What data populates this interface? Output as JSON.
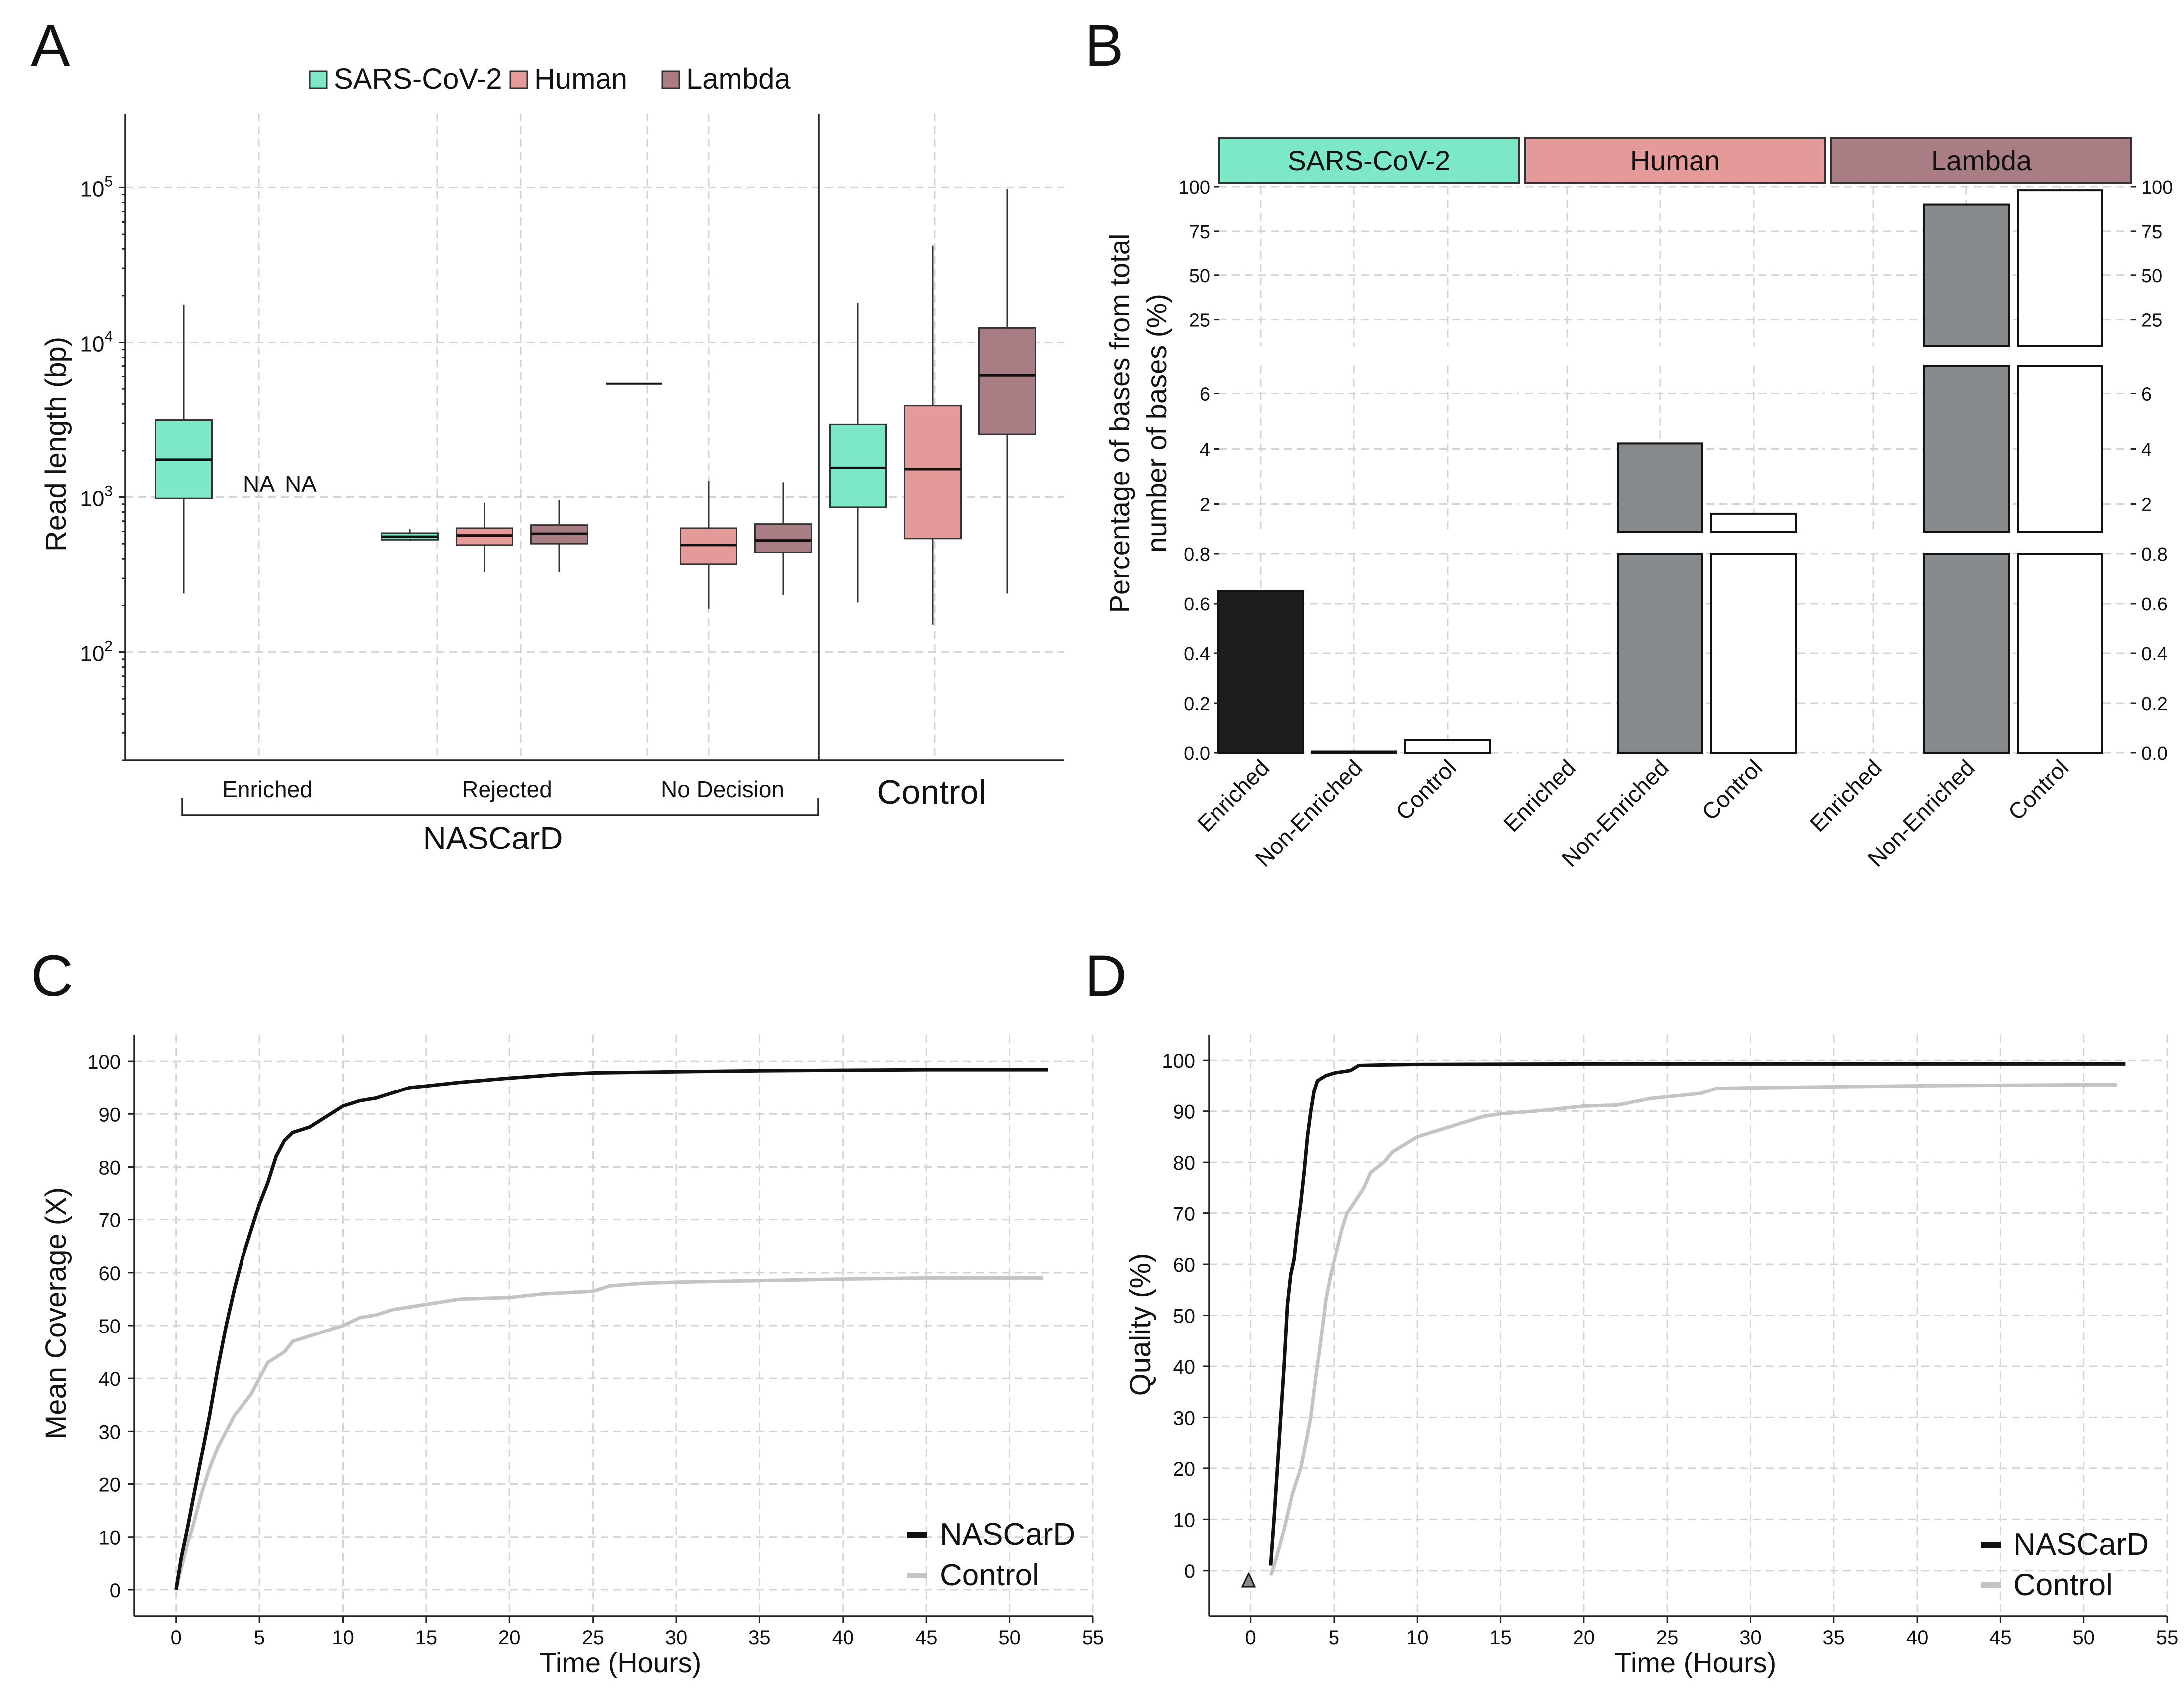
{
  "panel_labels": {
    "a": "A",
    "b": "B",
    "c": "C",
    "d": "D"
  },
  "colors": {
    "sars": "#7de8c8",
    "human": "#e39a98",
    "lambda": "#a97d84",
    "gray_bar": "#868a8c",
    "black_bar": "#1f1c1c",
    "nascard_line": "#111111",
    "control_line": "#c4c4c4"
  },
  "chart_data": [
    {
      "id": "A",
      "type": "box",
      "ylabel": "Read length (bp)",
      "yscale": "log10",
      "ylim": [
        20,
        300000
      ],
      "ytick_base": "10",
      "ytick_exponents": [
        "2",
        "3",
        "4",
        "5"
      ],
      "legend": [
        "SARS-CoV-2",
        "Human",
        "Lambda"
      ],
      "group_labels": [
        "Enriched",
        "Rejected",
        "No Decision",
        "Control"
      ],
      "bracket_label": "NASCarD",
      "na_label": "NA",
      "boxes": [
        {
          "group": "Enriched",
          "species": "SARS-CoV-2",
          "min": 240,
          "q1": 980,
          "median": 1750,
          "q3": 3150,
          "max": 17500
        },
        {
          "group": "Rejected",
          "species": "SARS-CoV-2",
          "min": 520,
          "q1": 530,
          "median": 555,
          "q3": 585,
          "max": 620
        },
        {
          "group": "Rejected",
          "species": "Human",
          "min": 330,
          "q1": 490,
          "median": 565,
          "q3": 630,
          "max": 920
        },
        {
          "group": "Rejected",
          "species": "Lambda",
          "min": 330,
          "q1": 500,
          "median": 580,
          "q3": 660,
          "max": 960
        },
        {
          "group": "No Decision",
          "species": "SARS-CoV-2",
          "min": 5400,
          "q1": 5400,
          "median": 5400,
          "q3": 5400,
          "max": 5400
        },
        {
          "group": "No Decision",
          "species": "Human",
          "min": 190,
          "q1": 370,
          "median": 490,
          "q3": 630,
          "max": 1280
        },
        {
          "group": "No Decision",
          "species": "Lambda",
          "min": 235,
          "q1": 440,
          "median": 525,
          "q3": 670,
          "max": 1250
        },
        {
          "group": "Control",
          "species": "SARS-CoV-2",
          "min": 210,
          "q1": 860,
          "median": 1550,
          "q3": 2950,
          "max": 18000
        },
        {
          "group": "Control",
          "species": "Human",
          "min": 150,
          "q1": 540,
          "median": 1520,
          "q3": 3900,
          "max": 42000
        },
        {
          "group": "Control",
          "species": "Lambda",
          "min": 240,
          "q1": 2550,
          "median": 6100,
          "q3": 12400,
          "max": 98000
        }
      ]
    },
    {
      "id": "B",
      "type": "bar",
      "ylabel_line1": "Percentage of bases from total",
      "ylabel_line2": "number of bases (%)",
      "facets": [
        "SARS-CoV-2",
        "Human",
        "Lambda"
      ],
      "categories": [
        "Enriched",
        "Non-Enriched",
        "Control"
      ],
      "segments": [
        {
          "range": [
            0,
            0.8
          ],
          "ticks": [
            "0.0",
            "0.2",
            "0.4",
            "0.6",
            "0.8"
          ]
        },
        {
          "range": [
            1,
            7
          ],
          "ticks": [
            "2",
            "4",
            "6"
          ]
        },
        {
          "range": [
            10,
            100
          ],
          "ticks": [
            "25",
            "50",
            "75",
            "100"
          ]
        }
      ],
      "values": [
        [
          0.65,
          0.005,
          0.05
        ],
        [
          0.0,
          4.2,
          1.65
        ],
        [
          0.0,
          90.0,
          98.0
        ]
      ]
    },
    {
      "id": "C",
      "type": "line",
      "xlabel": "Time (Hours)",
      "ylabel": "Mean Coverage (X)",
      "xlim": [
        -2.5,
        55
      ],
      "ylim": [
        -5,
        105
      ],
      "xticks": [
        "0",
        "5",
        "10",
        "15",
        "20",
        "25",
        "30",
        "35",
        "40",
        "45",
        "50",
        "55"
      ],
      "yticks": [
        "0",
        "10",
        "20",
        "30",
        "40",
        "50",
        "60",
        "70",
        "80",
        "90",
        "100"
      ],
      "legend": [
        "NASCarD",
        "Control"
      ],
      "series": [
        {
          "name": "NASCarD",
          "points": [
            [
              0,
              0
            ],
            [
              0.3,
              6
            ],
            [
              0.7,
              12
            ],
            [
              1,
              17
            ],
            [
              1.5,
              25
            ],
            [
              2,
              33
            ],
            [
              2.5,
              42
            ],
            [
              3,
              50
            ],
            [
              3.5,
              57
            ],
            [
              4,
              63
            ],
            [
              4.5,
              68
            ],
            [
              5,
              73
            ],
            [
              5.5,
              77
            ],
            [
              6,
              82
            ],
            [
              6.5,
              85
            ],
            [
              7,
              86.5
            ],
            [
              8,
              87.5
            ],
            [
              9,
              89.5
            ],
            [
              10,
              91.5
            ],
            [
              11,
              92.5
            ],
            [
              12,
              93
            ],
            [
              13,
              94
            ],
            [
              14,
              95
            ],
            [
              15,
              95.3
            ],
            [
              17,
              96
            ],
            [
              20,
              96.8
            ],
            [
              23,
              97.5
            ],
            [
              25,
              97.8
            ],
            [
              30,
              98
            ],
            [
              35,
              98.2
            ],
            [
              40,
              98.3
            ],
            [
              45,
              98.4
            ],
            [
              50,
              98.4
            ],
            [
              52.3,
              98.4
            ]
          ]
        },
        {
          "name": "Control",
          "points": [
            [
              0,
              0
            ],
            [
              0.3,
              4
            ],
            [
              0.7,
              9
            ],
            [
              1,
              12
            ],
            [
              1.5,
              18
            ],
            [
              2,
              23
            ],
            [
              2.5,
              27
            ],
            [
              3,
              30
            ],
            [
              3.5,
              33
            ],
            [
              4,
              35
            ],
            [
              4.5,
              37
            ],
            [
              5,
              40
            ],
            [
              5.5,
              43
            ],
            [
              6,
              44
            ],
            [
              6.5,
              45
            ],
            [
              7,
              47
            ],
            [
              8,
              48
            ],
            [
              9,
              49
            ],
            [
              10,
              50
            ],
            [
              11,
              51.5
            ],
            [
              12,
              52
            ],
            [
              13,
              53
            ],
            [
              14,
              53.5
            ],
            [
              15,
              54
            ],
            [
              17,
              55
            ],
            [
              20,
              55.3
            ],
            [
              22,
              56
            ],
            [
              25,
              56.5
            ],
            [
              26,
              57.5
            ],
            [
              28,
              58
            ],
            [
              30,
              58.2
            ],
            [
              35,
              58.5
            ],
            [
              40,
              58.8
            ],
            [
              45,
              59
            ],
            [
              50,
              59
            ],
            [
              52,
              59
            ]
          ]
        }
      ]
    },
    {
      "id": "D",
      "type": "line",
      "xlabel": "Time (Hours)",
      "ylabel": "Quality (%)",
      "xlim": [
        -2.5,
        55
      ],
      "ylim": [
        -9,
        105
      ],
      "xticks": [
        "0",
        "5",
        "10",
        "15",
        "20",
        "25",
        "30",
        "35",
        "40",
        "45",
        "50",
        "55"
      ],
      "yticks": [
        "0",
        "10",
        "20",
        "30",
        "40",
        "50",
        "60",
        "70",
        "80",
        "90",
        "100"
      ],
      "legend": [
        "NASCarD",
        "Control"
      ],
      "series": [
        {
          "name": "NASCarD",
          "points": [
            [
              1.2,
              1
            ],
            [
              1.4,
              10
            ],
            [
              1.6,
              20
            ],
            [
              1.8,
              30
            ],
            [
              2,
              40
            ],
            [
              2.2,
              52
            ],
            [
              2.4,
              58
            ],
            [
              2.6,
              61
            ],
            [
              2.8,
              67
            ],
            [
              3,
              72
            ],
            [
              3.2,
              78
            ],
            [
              3.4,
              85
            ],
            [
              3.6,
              90
            ],
            [
              3.8,
              94
            ],
            [
              4,
              96
            ],
            [
              4.5,
              97
            ],
            [
              5,
              97.5
            ],
            [
              6,
              98
            ],
            [
              6.5,
              99
            ],
            [
              8,
              99.1
            ],
            [
              10,
              99.2
            ],
            [
              20,
              99.3
            ],
            [
              30,
              99.3
            ],
            [
              40,
              99.3
            ],
            [
              52.5,
              99.3
            ]
          ]
        },
        {
          "name": "Control",
          "points": [
            [
              1.2,
              -1
            ],
            [
              1.5,
              2
            ],
            [
              2,
              8
            ],
            [
              2.5,
              15
            ],
            [
              3,
              20
            ],
            [
              3.3,
              25
            ],
            [
              3.6,
              30
            ],
            [
              3.9,
              38
            ],
            [
              4.2,
              45
            ],
            [
              4.5,
              53
            ],
            [
              4.8,
              58
            ],
            [
              5.2,
              63
            ],
            [
              5.5,
              67
            ],
            [
              5.8,
              70
            ],
            [
              6.2,
              72
            ],
            [
              6.8,
              75
            ],
            [
              7.2,
              78
            ],
            [
              8,
              80
            ],
            [
              8.5,
              82
            ],
            [
              9,
              83
            ],
            [
              10,
              85
            ],
            [
              11,
              86
            ],
            [
              12,
              87
            ],
            [
              13,
              88
            ],
            [
              14,
              89
            ],
            [
              15,
              89.5
            ],
            [
              17,
              90
            ],
            [
              20,
              91
            ],
            [
              22,
              91.2
            ],
            [
              24,
              92.5
            ],
            [
              27,
              93.5
            ],
            [
              28,
              94.5
            ],
            [
              30,
              94.6
            ],
            [
              35,
              94.8
            ],
            [
              40,
              95
            ],
            [
              45,
              95.1
            ],
            [
              50,
              95.2
            ],
            [
              52,
              95.2
            ]
          ]
        }
      ]
    }
  ]
}
